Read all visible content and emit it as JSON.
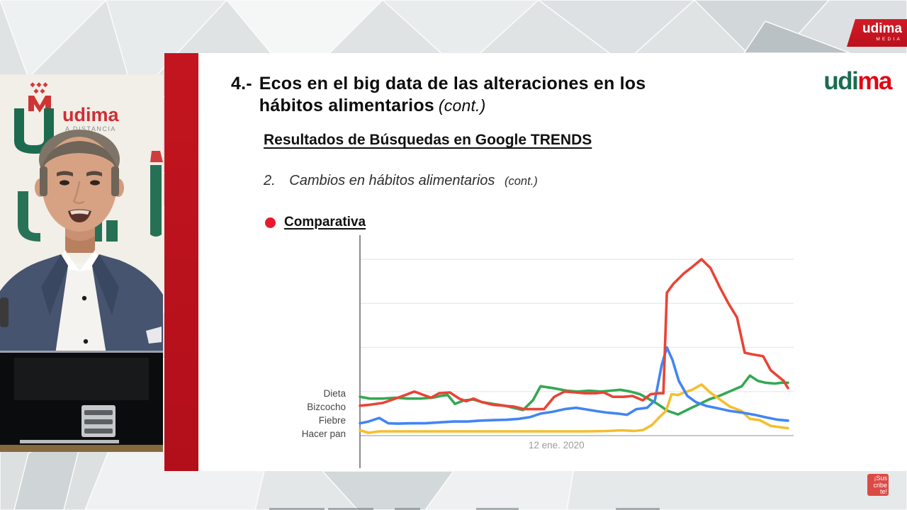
{
  "branding": {
    "channel_flag": {
      "brand": "udima",
      "label": "MEDIA",
      "bg": "#CC1420"
    },
    "slide_logo": {
      "part_green": "udi",
      "part_red": "ma",
      "green": "#1A6B52",
      "red": "#E30613"
    },
    "backdrop": {
      "brand_text": "udima",
      "tagline": "A DISTANCIA"
    },
    "subscribe": {
      "line1": "¡Sus",
      "line2": "cribe",
      "line3": "te!"
    }
  },
  "slide": {
    "title_number": "4.-",
    "title_line1": "Ecos en el big data de las alteraciones en los",
    "title_line2": "hábitos alimentarios",
    "title_cont": "(cont.)",
    "heading": "Resultados de Búsquedas en Google TRENDS",
    "sub_number": "2.",
    "sub_text": "Cambios en hábitos alimentarios",
    "sub_cont": "(cont.)",
    "bullet_label": "Comparativa",
    "bullet_color": "#E8192C"
  },
  "chart_data": {
    "type": "line",
    "source": "Google Trends comparison",
    "ylim": [
      0,
      100
    ],
    "gridline_values": [
      0,
      25,
      50,
      75,
      100
    ],
    "grid": true,
    "yticks_labeled": false,
    "legend_position": "left",
    "x_tick": {
      "label": "12 ene. 2020",
      "position_pct": 45.9
    },
    "series": [
      {
        "name": "Dieta",
        "color": "#34A853",
        "z": 1,
        "points": [
          [
            0,
            22
          ],
          [
            2.3,
            21
          ],
          [
            5.3,
            21
          ],
          [
            8.3,
            21.5
          ],
          [
            11.1,
            21
          ],
          [
            14.1,
            21
          ],
          [
            16.9,
            21.5
          ],
          [
            18.9,
            22.5
          ],
          [
            20.5,
            23
          ],
          [
            22.2,
            18
          ],
          [
            24.3,
            20
          ],
          [
            26.5,
            20.5
          ],
          [
            28.5,
            19
          ],
          [
            31,
            18
          ],
          [
            33.8,
            17
          ],
          [
            36.3,
            15.5
          ],
          [
            38.1,
            14.5
          ],
          [
            40.4,
            20
          ],
          [
            42.2,
            28
          ],
          [
            45,
            27
          ],
          [
            48.3,
            25.5
          ],
          [
            50.8,
            25
          ],
          [
            53.6,
            25.5
          ],
          [
            56.3,
            25
          ],
          [
            58.6,
            25.5
          ],
          [
            60.8,
            26
          ],
          [
            63.2,
            25
          ],
          [
            65.4,
            23.5
          ],
          [
            67.7,
            20.5
          ],
          [
            69.5,
            18
          ],
          [
            71.9,
            14
          ],
          [
            74.3,
            12
          ],
          [
            76.8,
            15
          ],
          [
            79,
            17.5
          ],
          [
            81.5,
            20.5
          ],
          [
            83.9,
            22.5
          ],
          [
            86.8,
            25.5
          ],
          [
            89.2,
            28
          ],
          [
            91.1,
            34
          ],
          [
            93,
            31
          ],
          [
            94.7,
            30
          ],
          [
            96.9,
            29.5
          ],
          [
            98.5,
            30
          ],
          [
            100,
            30
          ]
        ]
      },
      {
        "name": "Bizcocho",
        "color": "#EA4335",
        "z": 4,
        "points": [
          [
            0,
            17
          ],
          [
            2.3,
            17.5
          ],
          [
            5.3,
            18.5
          ],
          [
            8.3,
            21
          ],
          [
            10.6,
            23
          ],
          [
            12.7,
            25
          ],
          [
            14.9,
            23
          ],
          [
            16.6,
            21.5
          ],
          [
            18.5,
            24
          ],
          [
            21,
            24.5
          ],
          [
            23.2,
            21
          ],
          [
            24.8,
            19.5
          ],
          [
            26.5,
            21
          ],
          [
            28.5,
            19
          ],
          [
            31,
            17.5
          ],
          [
            33.4,
            17
          ],
          [
            35.9,
            16.5
          ],
          [
            38.4,
            15
          ],
          [
            40.9,
            15
          ],
          [
            43,
            15
          ],
          [
            45.4,
            22
          ],
          [
            47.8,
            25
          ],
          [
            50.3,
            24.5
          ],
          [
            52.6,
            24
          ],
          [
            55,
            24
          ],
          [
            57,
            24.5
          ],
          [
            59.1,
            22
          ],
          [
            61.6,
            22
          ],
          [
            63.7,
            22.5
          ],
          [
            66.1,
            20
          ],
          [
            67.9,
            23.5
          ],
          [
            69.9,
            24
          ],
          [
            70.9,
            24
          ],
          [
            71.7,
            81
          ],
          [
            73.2,
            86
          ],
          [
            75.7,
            92
          ],
          [
            77.8,
            96
          ],
          [
            79.8,
            100
          ],
          [
            81.9,
            95
          ],
          [
            84.1,
            84
          ],
          [
            86.1,
            75
          ],
          [
            88.1,
            67
          ],
          [
            89.9,
            47
          ],
          [
            91.9,
            46
          ],
          [
            94.2,
            45
          ],
          [
            96,
            37
          ],
          [
            97.5,
            34
          ],
          [
            99,
            31
          ],
          [
            100,
            27
          ]
        ]
      },
      {
        "name": "Fiebre",
        "color": "#4285F4",
        "z": 3,
        "points": [
          [
            0,
            7
          ],
          [
            2,
            8
          ],
          [
            4.5,
            10
          ],
          [
            6.6,
            7
          ],
          [
            8.9,
            6.8
          ],
          [
            11.9,
            7
          ],
          [
            15.2,
            7
          ],
          [
            18.5,
            7.5
          ],
          [
            21.9,
            8
          ],
          [
            25.2,
            8
          ],
          [
            28.1,
            8.5
          ],
          [
            31.3,
            8.8
          ],
          [
            34.3,
            9
          ],
          [
            37.1,
            9.5
          ],
          [
            39.7,
            10.5
          ],
          [
            42.2,
            12.5
          ],
          [
            45,
            13.5
          ],
          [
            47.8,
            15
          ],
          [
            50.5,
            15.8
          ],
          [
            53,
            14.8
          ],
          [
            55.5,
            13.8
          ],
          [
            57.9,
            13
          ],
          [
            60.3,
            12.5
          ],
          [
            62.4,
            11.8
          ],
          [
            64.6,
            15
          ],
          [
            67.1,
            15.8
          ],
          [
            68.9,
            20
          ],
          [
            70.5,
            40
          ],
          [
            71.7,
            50
          ],
          [
            73,
            43
          ],
          [
            74.5,
            31
          ],
          [
            76.5,
            22.5
          ],
          [
            78.5,
            19
          ],
          [
            81,
            16.8
          ],
          [
            83.6,
            15.5
          ],
          [
            86.4,
            14
          ],
          [
            89.4,
            13
          ],
          [
            92.2,
            11.8
          ],
          [
            95,
            10.3
          ],
          [
            97.7,
            9
          ],
          [
            100,
            8.5
          ]
        ]
      },
      {
        "name": "Hacer pan",
        "color": "#F5BE2E",
        "z": 2,
        "points": [
          [
            0,
            3
          ],
          [
            2,
            1.6
          ],
          [
            4.5,
            2.4
          ],
          [
            8.6,
            2.4
          ],
          [
            13.6,
            2.4
          ],
          [
            18.5,
            2.4
          ],
          [
            23.5,
            2.4
          ],
          [
            28.5,
            2.4
          ],
          [
            33.4,
            2.4
          ],
          [
            38.4,
            2.4
          ],
          [
            43.4,
            2.4
          ],
          [
            48.3,
            2.4
          ],
          [
            53.3,
            2.4
          ],
          [
            57.5,
            2.6
          ],
          [
            61.3,
            3
          ],
          [
            64.1,
            2.6
          ],
          [
            66.2,
            3.2
          ],
          [
            68.2,
            6
          ],
          [
            70.2,
            11
          ],
          [
            71.5,
            14
          ],
          [
            72.8,
            23.5
          ],
          [
            74.3,
            23
          ],
          [
            75.8,
            24.5
          ],
          [
            77.6,
            26
          ],
          [
            79.8,
            29
          ],
          [
            81.8,
            24.5
          ],
          [
            83.8,
            21
          ],
          [
            86.4,
            16.5
          ],
          [
            89.1,
            14
          ],
          [
            91.1,
            9.5
          ],
          [
            93.4,
            8.8
          ],
          [
            96,
            5.5
          ],
          [
            98,
            4.8
          ],
          [
            100,
            4.2
          ]
        ]
      }
    ]
  }
}
